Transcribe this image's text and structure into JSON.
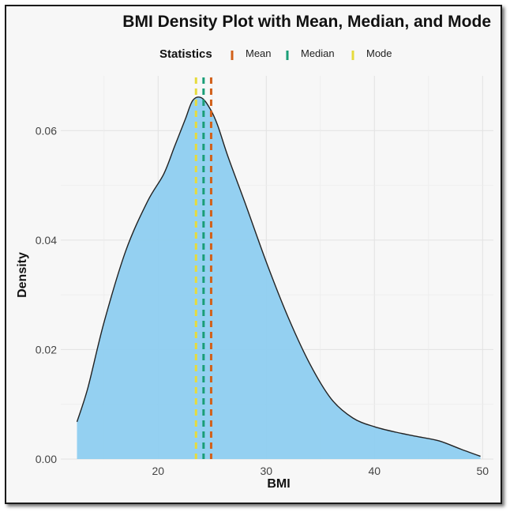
{
  "chart_data": {
    "type": "area",
    "title": "BMI Density Plot with Mean, Median, and Mode",
    "xlabel": "BMI",
    "ylabel": "Density",
    "xlim": [
      11,
      51
    ],
    "ylim": [
      0,
      0.07
    ],
    "x_ticks": [
      20,
      30,
      40,
      50
    ],
    "y_ticks": [
      0.0,
      0.02,
      0.04,
      0.06
    ],
    "x_tick_labels": [
      "20",
      "30",
      "40",
      "50"
    ],
    "y_tick_labels": [
      "0.00",
      "0.02",
      "0.04",
      "0.06"
    ],
    "grid": true,
    "legend": {
      "title": "Statistics",
      "position": "top"
    },
    "fill_color": "#8ecdf0",
    "line_color": "#222222",
    "density": {
      "x": [
        12.5,
        13.5,
        15,
        17,
        19,
        20.5,
        21.5,
        22.5,
        23.2,
        24,
        24.8,
        25.5,
        26.5,
        28,
        30,
        32,
        34,
        36,
        38,
        40,
        42,
        44,
        46,
        48,
        49.8
      ],
      "y": [
        0.0068,
        0.013,
        0.025,
        0.038,
        0.047,
        0.052,
        0.057,
        0.062,
        0.0655,
        0.066,
        0.064,
        0.061,
        0.055,
        0.047,
        0.036,
        0.026,
        0.0175,
        0.011,
        0.0075,
        0.0059,
        0.0049,
        0.0041,
        0.0033,
        0.0018,
        0.0005
      ]
    },
    "reference_lines": [
      {
        "name": "Mean",
        "x": 24.9,
        "color": "#d2601a"
      },
      {
        "name": "Median",
        "x": 24.2,
        "color": "#1a9e77"
      },
      {
        "name": "Mode",
        "x": 23.5,
        "color": "#e6db3c"
      }
    ]
  }
}
